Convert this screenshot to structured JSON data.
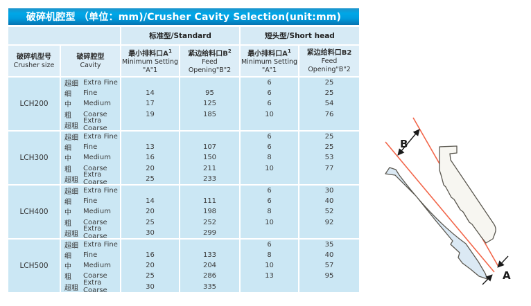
{
  "title": "破碎机腔型 （单位：mm)/Crusher Cavity Selection(unit:mm)",
  "group_headers": {
    "standard": "标准型/Standard",
    "short_head": "短头型/Short head"
  },
  "table": {
    "columns": [
      {
        "zh": "破碎机型号",
        "sup": "",
        "en": "Crusher size",
        "en2": ""
      },
      {
        "zh": "破碎腔型",
        "sup": "",
        "en": "Cavity",
        "en2": ""
      },
      {
        "zh": "最小排料口A",
        "sup": "1",
        "en": "Minimum Setting",
        "en2": "\"A\"1"
      },
      {
        "zh": "紧边给料口B",
        "sup": "2",
        "en": "Feed",
        "en2": "Opening\"B\"2"
      },
      {
        "zh": "最小排料口A",
        "sup": "1",
        "en": "Minimum Setting",
        "en2": "\"A\"1"
      },
      {
        "zh": "紧边给料口B2",
        "sup": "",
        "en": "Feed",
        "en2": "Opening\"B\"2"
      }
    ],
    "groups": [
      {
        "model": "LCH200",
        "rows": [
          {
            "cavity_zh": "超细",
            "cavity_en": "Extra Fine",
            "std_a": "",
            "std_b": "",
            "sh_a": "6",
            "sh_b": "25"
          },
          {
            "cavity_zh": "细",
            "cavity_en": "Fine",
            "std_a": "14",
            "std_b": "95",
            "sh_a": "6",
            "sh_b": "25"
          },
          {
            "cavity_zh": "中",
            "cavity_en": "Medium",
            "std_a": "17",
            "std_b": "125",
            "sh_a": "6",
            "sh_b": "54"
          },
          {
            "cavity_zh": "粗",
            "cavity_en": "Coarse",
            "std_a": "19",
            "std_b": "185",
            "sh_a": "10",
            "sh_b": "76"
          },
          {
            "cavity_zh": "超粗",
            "cavity_en": "Extra Coarse",
            "std_a": "",
            "std_b": "",
            "sh_a": "",
            "sh_b": ""
          }
        ]
      },
      {
        "model": "LCH300",
        "rows": [
          {
            "cavity_zh": "超细",
            "cavity_en": "Extra Fine",
            "std_a": "",
            "std_b": "",
            "sh_a": "6",
            "sh_b": "25"
          },
          {
            "cavity_zh": "细",
            "cavity_en": "Fine",
            "std_a": "13",
            "std_b": "107",
            "sh_a": "6",
            "sh_b": "25"
          },
          {
            "cavity_zh": "中",
            "cavity_en": "Medium",
            "std_a": "16",
            "std_b": "150",
            "sh_a": "8",
            "sh_b": "53"
          },
          {
            "cavity_zh": "粗",
            "cavity_en": "Coarse",
            "std_a": "20",
            "std_b": "211",
            "sh_a": "10",
            "sh_b": "77"
          },
          {
            "cavity_zh": "超粗",
            "cavity_en": "Extra Coarse",
            "std_a": "25",
            "std_b": "233",
            "sh_a": "",
            "sh_b": ""
          }
        ]
      },
      {
        "model": "LCH400",
        "rows": [
          {
            "cavity_zh": "超细",
            "cavity_en": "Extra Fine",
            "std_a": "",
            "std_b": "",
            "sh_a": "6",
            "sh_b": "30"
          },
          {
            "cavity_zh": "细",
            "cavity_en": "Fine",
            "std_a": "14",
            "std_b": "111",
            "sh_a": "6",
            "sh_b": "40"
          },
          {
            "cavity_zh": "中",
            "cavity_en": "Medium",
            "std_a": "20",
            "std_b": "198",
            "sh_a": "8",
            "sh_b": "52"
          },
          {
            "cavity_zh": "粗",
            "cavity_en": "Coarse",
            "std_a": "25",
            "std_b": "252",
            "sh_a": "10",
            "sh_b": "92"
          },
          {
            "cavity_zh": "超粗",
            "cavity_en": "Extra Coarse",
            "std_a": "30",
            "std_b": "299",
            "sh_a": "",
            "sh_b": ""
          }
        ]
      },
      {
        "model": "LCH500",
        "rows": [
          {
            "cavity_zh": "超细",
            "cavity_en": "Extra Fine",
            "std_a": "",
            "std_b": "",
            "sh_a": "6",
            "sh_b": "35"
          },
          {
            "cavity_zh": "细",
            "cavity_en": "Fine",
            "std_a": "16",
            "std_b": "133",
            "sh_a": "8",
            "sh_b": "40"
          },
          {
            "cavity_zh": "中",
            "cavity_en": "Medium",
            "std_a": "20",
            "std_b": "204",
            "sh_a": "10",
            "sh_b": "57"
          },
          {
            "cavity_zh": "粗",
            "cavity_en": "Coarse",
            "std_a": "25",
            "std_b": "286",
            "sh_a": "13",
            "sh_b": "95"
          },
          {
            "cavity_zh": "超粗",
            "cavity_en": "Extra Coarse",
            "std_a": "30",
            "std_b": "335",
            "sh_a": "",
            "sh_b": ""
          }
        ]
      }
    ]
  },
  "diagram": {
    "label_b": "B",
    "label_a": "A",
    "line_color": "#f2664a",
    "mantle_fill": "#dbe9f4",
    "concave_fill": "#f7f6f1",
    "outline_color": "#5a574f"
  },
  "colors": {
    "title_accent": "#00a6e6",
    "row_fill": "#cbe7f4",
    "header_fill": "#dcedf7",
    "group_fill": "#d6eaf5"
  }
}
